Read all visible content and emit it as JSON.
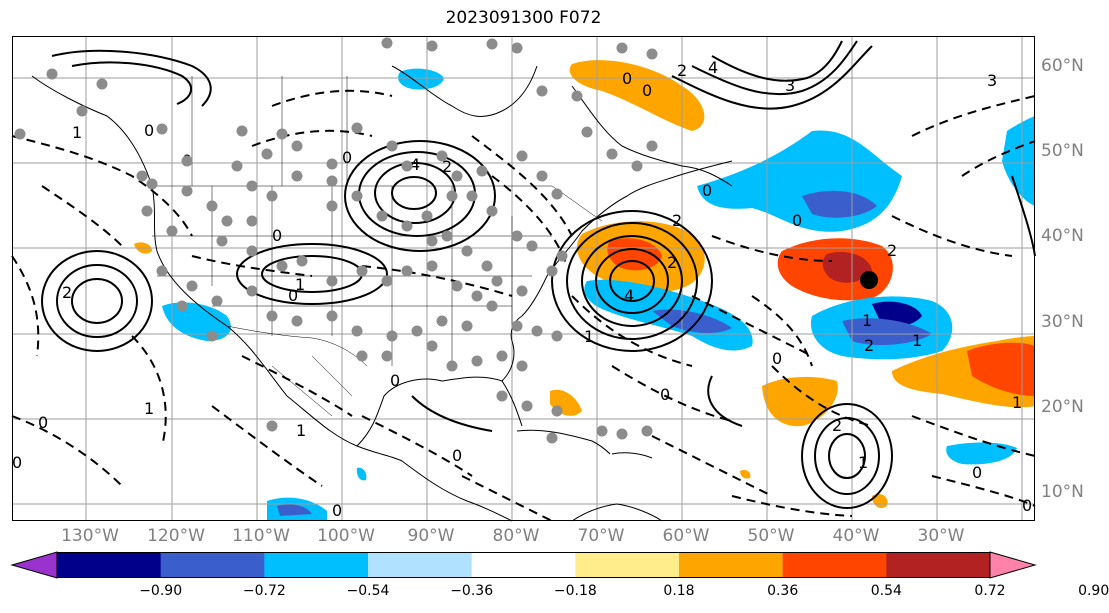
{
  "title": "2023091300 F072",
  "colors": {
    "grid": "#9e9e9e",
    "coast": "#000000",
    "contour": "#000000",
    "label_gray": "#808080",
    "station_dot": "#8c8c8c",
    "storm_marker": "#000000"
  },
  "lat_labels": [
    "60°N",
    "50°N",
    "40°N",
    "30°N",
    "20°N",
    "10°N"
  ],
  "lon_labels": [
    "130°W",
    "120°W",
    "110°W",
    "100°W",
    "90°W",
    "80°W",
    "70°W",
    "60°W",
    "50°W",
    "40°W",
    "30°W"
  ],
  "colorbar": {
    "colors": [
      "#9a32cd",
      "#00008b",
      "#3a5fcd",
      "#00bfff",
      "#b0e2ff",
      "#ffffff",
      "#ffec8b",
      "#ffa500",
      "#ff4500",
      "#b22222",
      "#ff82ab"
    ],
    "extend": "both",
    "ticks": [
      "−0.90",
      "−0.72",
      "−0.54",
      "−0.36",
      "−0.18",
      "0.18",
      "0.36",
      "0.54",
      "0.72",
      "0.90"
    ]
  },
  "contour_labels": [
    "4",
    "2",
    "0",
    "3",
    "1",
    "0",
    "2",
    "0",
    "4",
    "2",
    "1",
    "0",
    "0",
    "1",
    "1",
    "2",
    "1",
    "4",
    "2",
    "1",
    "0",
    "0",
    "0",
    "0",
    "0",
    "1",
    "2",
    "0",
    "0",
    "2",
    "3",
    "1",
    "0",
    "2",
    "0",
    "0",
    "0",
    "1",
    "0",
    "0"
  ],
  "filled_regions": [
    {
      "name": "nova-scotia-orange",
      "color": "#ffa500"
    },
    {
      "name": "nova-scotia-red",
      "color": "#ff4500"
    },
    {
      "name": "atlantic-red-blob",
      "color": "#ff4500"
    },
    {
      "name": "atlantic-darkred",
      "color": "#b22222"
    },
    {
      "name": "atlantic-orange-east",
      "color": "#ffa500"
    },
    {
      "name": "atlantic-blue-south",
      "color": "#00bfff"
    },
    {
      "name": "atlantic-navy",
      "color": "#00008b"
    },
    {
      "name": "labrador-orange",
      "color": "#ffa500"
    },
    {
      "name": "newfoundland-blue",
      "color": "#00bfff"
    },
    {
      "name": "mexico-blue",
      "color": "#00bfff"
    }
  ]
}
